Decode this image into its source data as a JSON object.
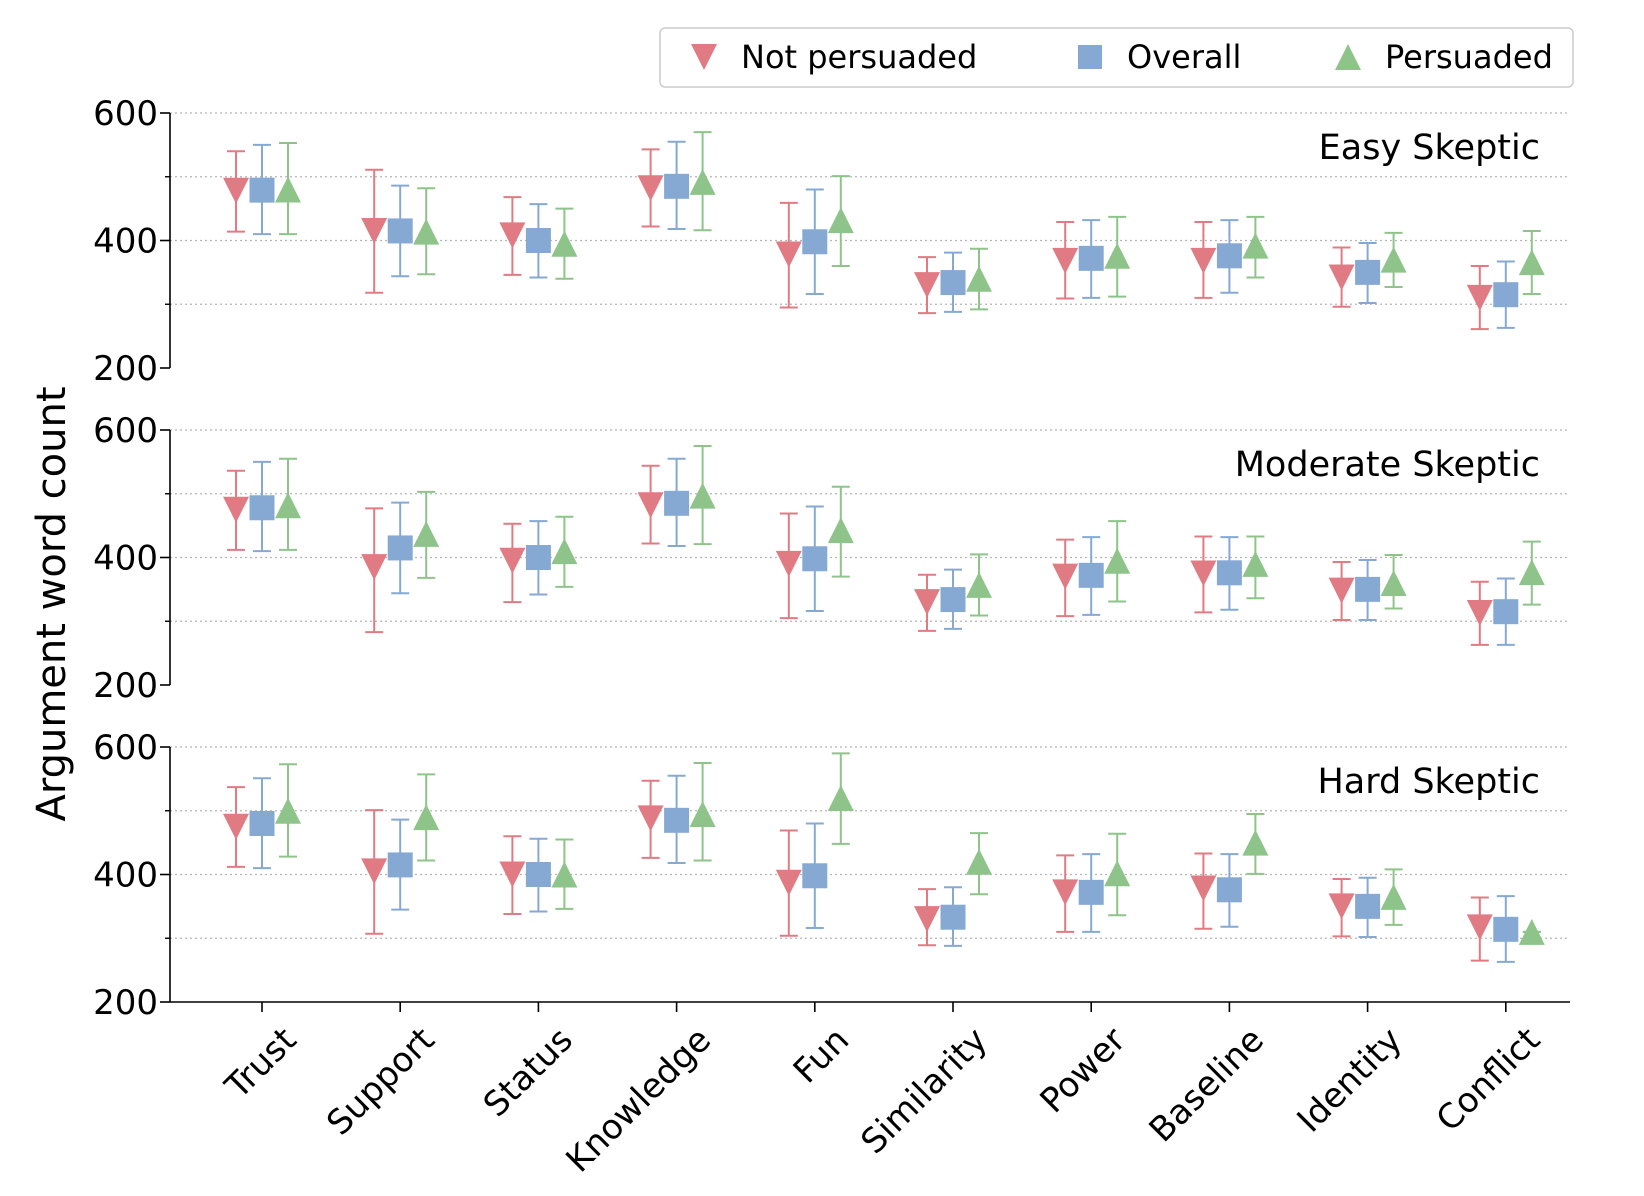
{
  "chart_data": {
    "type": "scatter",
    "ylabel": "Argument word count",
    "ylim": [
      200,
      600
    ],
    "yticks": [
      200,
      400,
      600
    ],
    "grid": true,
    "legend_position": "top-right",
    "categories": [
      "Trust",
      "Support",
      "Status",
      "Knowledge",
      "Fun",
      "Similarity",
      "Power",
      "Baseline",
      "Identity",
      "Conflict"
    ],
    "legend": [
      {
        "name": "Not persuaded",
        "marker": "triangle-down",
        "color": "#e07b83"
      },
      {
        "name": "Overall",
        "marker": "square",
        "color": "#86a9d4"
      },
      {
        "name": "Persuaded",
        "marker": "triangle-up",
        "color": "#8ec48a"
      }
    ],
    "panels": [
      {
        "title": "Easy Skeptic",
        "series": [
          {
            "name": "Not persuaded",
            "values": [
              478,
              415,
              408,
              482,
              378,
              330,
              368,
              368,
              342,
              310
            ],
            "lower": [
              414,
              318,
              346,
              422,
              295,
              286,
              309,
              310,
              296,
              261
            ],
            "upper": [
              540,
              511,
              468,
              543,
              459,
              374,
              429,
              429,
              389,
              360
            ]
          },
          {
            "name": "Overall",
            "values": [
              479,
              415,
              400,
              485,
              398,
              334,
              372,
              376,
              350,
              315
            ],
            "lower": [
              410,
              344,
              342,
              418,
              316,
              288,
              310,
              318,
              302,
              263
            ],
            "upper": [
              550,
              486,
              457,
              555,
              480,
              381,
              432,
              432,
              396,
              367
            ]
          },
          {
            "name": "Persuaded",
            "values": [
              480,
              414,
              395,
              492,
              432,
              340,
              376,
              392,
              370,
              366
            ],
            "lower": [
              410,
              347,
              340,
              416,
              360,
              292,
              312,
              342,
              327,
              316
            ],
            "upper": [
              553,
              482,
              450,
              570,
              501,
              387,
              437,
              437,
              412,
              415
            ]
          }
        ]
      },
      {
        "title": "Moderate Skeptic",
        "series": [
          {
            "name": "Not persuaded",
            "values": [
              475,
              385,
              395,
              482,
              390,
              330,
              370,
              375,
              348,
              313
            ],
            "lower": [
              412,
              283,
              330,
              422,
              305,
              285,
              308,
              314,
              302,
              263
            ],
            "upper": [
              536,
              477,
              453,
              544,
              469,
              373,
              428,
              433,
              393,
              362
            ]
          },
          {
            "name": "Overall",
            "values": [
              478,
              415,
              400,
              485,
              398,
              334,
              372,
              376,
              350,
              315
            ],
            "lower": [
              410,
              344,
              342,
              418,
              316,
              288,
              310,
              318,
              302,
              263
            ],
            "upper": [
              550,
              486,
              457,
              555,
              480,
              381,
              432,
              432,
              396,
              367
            ]
          },
          {
            "name": "Persuaded",
            "values": [
              482,
              437,
              410,
              497,
              443,
              357,
              395,
              390,
              360,
              377
            ],
            "lower": [
              412,
              368,
              354,
              421,
              370,
              309,
              331,
              336,
              320,
              326
            ],
            "upper": [
              555,
              503,
              464,
              575,
              511,
              405,
              457,
              433,
              404,
              425
            ]
          }
        ]
      },
      {
        "title": "Hard Skeptic",
        "series": [
          {
            "name": "Not persuaded",
            "values": [
              475,
              405,
              400,
              488,
              387,
              330,
              372,
              378,
              350,
              317
            ],
            "lower": [
              412,
              307,
              338,
              426,
              304,
              289,
              310,
              315,
              303,
              265
            ],
            "upper": [
              537,
              501,
              460,
              547,
              469,
              377,
              430,
              433,
              393,
              364
            ]
          },
          {
            "name": "Overall",
            "values": [
              480,
              415,
              400,
              485,
              398,
              333,
              372,
              376,
              350,
              314
            ],
            "lower": [
              410,
              345,
              342,
              418,
              316,
              288,
              310,
              318,
              302,
              263
            ],
            "upper": [
              551,
              486,
              456,
              555,
              480,
              380,
              432,
              432,
              395,
              366
            ]
          },
          {
            "name": "Persuaded",
            "values": [
              500,
              490,
              400,
              495,
              520,
              420,
              402,
              450,
              365,
              310
            ],
            "lower": [
              428,
              422,
              346,
              422,
              448,
              369,
              336,
              401,
              321,
              310
            ],
            "upper": [
              573,
              557,
              455,
              575,
              590,
              465,
              464,
              495,
              408,
              310
            ]
          }
        ]
      }
    ]
  }
}
